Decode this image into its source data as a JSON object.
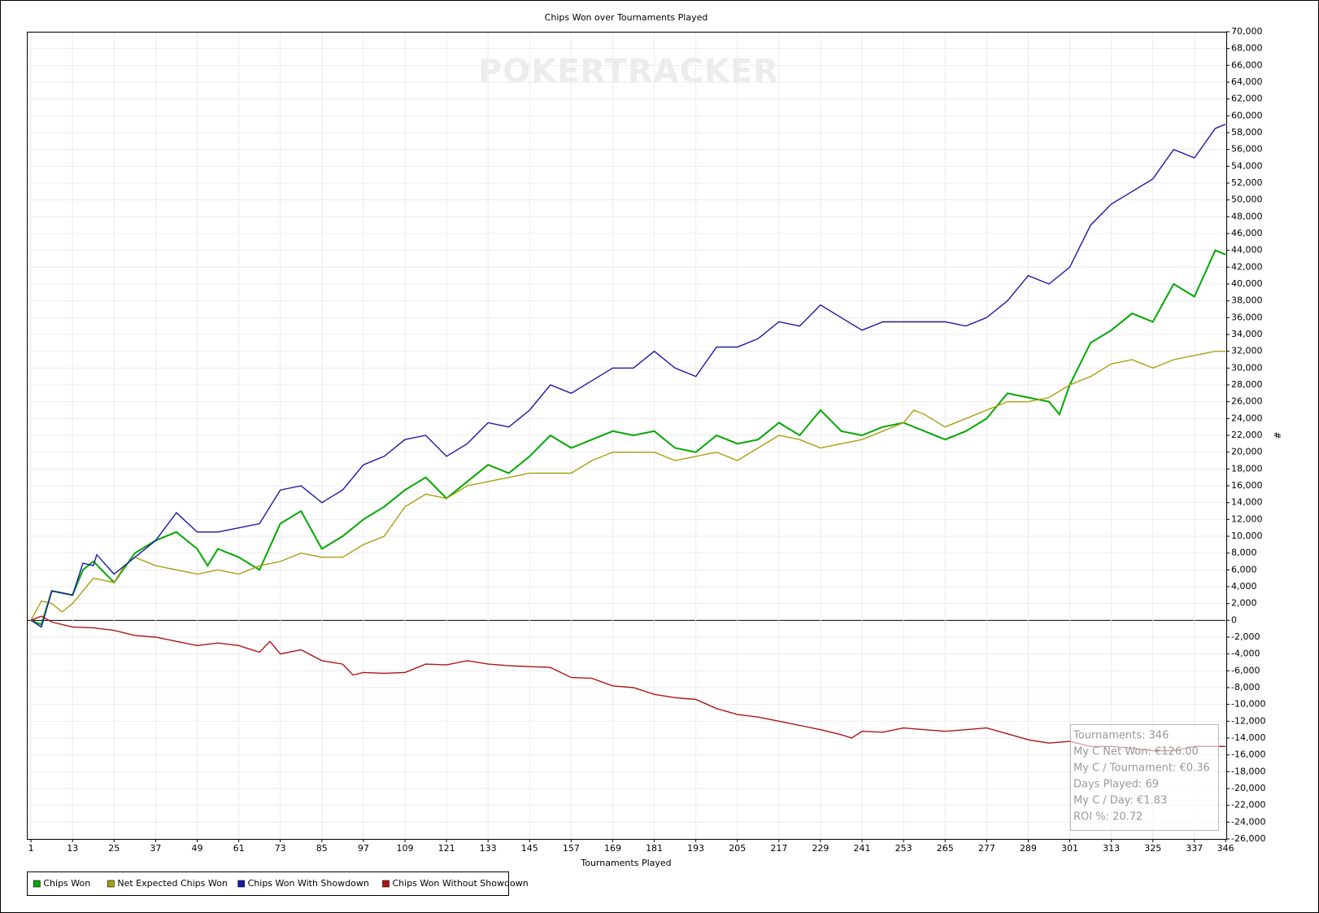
{
  "chart_data": {
    "type": "line",
    "title": "Chips Won over Tournaments Played",
    "watermark": "POKERTRACKER",
    "x_label": "Tournaments Played",
    "y_label": "#",
    "xlim": [
      -0.2,
      346.2
    ],
    "xticks": [
      1,
      13,
      25,
      37,
      49,
      61,
      73,
      85,
      97,
      109,
      121,
      133,
      145,
      157,
      169,
      181,
      193,
      205,
      217,
      229,
      241,
      253,
      265,
      277,
      289,
      301,
      313,
      325,
      337,
      346
    ],
    "ylim": [
      -26000,
      70000
    ],
    "yticks": [
      {
        "value": -26000,
        "label": "-26,000"
      },
      {
        "value": -24000,
        "label": "-24,000"
      },
      {
        "value": -22000,
        "label": "-22,000"
      },
      {
        "value": -20000,
        "label": "-20,000"
      },
      {
        "value": -18000,
        "label": "-18,000"
      },
      {
        "value": -16000,
        "label": "-16,000"
      },
      {
        "value": -14000,
        "label": "-14,000"
      },
      {
        "value": -12000,
        "label": "-12,000"
      },
      {
        "value": -10000,
        "label": "-10,000"
      },
      {
        "value": -8000,
        "label": "-8,000"
      },
      {
        "value": -6000,
        "label": "-6,000"
      },
      {
        "value": -4000,
        "label": "-4,000"
      },
      {
        "value": -2000,
        "label": "-2,000"
      },
      0,
      {
        "value": 2000,
        "label": "2,000"
      },
      {
        "value": 4000,
        "label": "4,000"
      },
      {
        "value": 6000,
        "label": "6,000"
      },
      {
        "value": 8000,
        "label": "8,000"
      },
      {
        "value": 10000,
        "label": "10,000"
      },
      {
        "value": 12000,
        "label": "12,000"
      },
      {
        "value": 14000,
        "label": "14,000"
      },
      {
        "value": 16000,
        "label": "16,000"
      },
      {
        "value": 18000,
        "label": "18,000"
      },
      {
        "value": 20000,
        "label": "20,000"
      },
      {
        "value": 22000,
        "label": "22,000"
      },
      {
        "value": 24000,
        "label": "24,000"
      },
      {
        "value": 26000,
        "label": "26,000"
      },
      {
        "value": 28000,
        "label": "28,000"
      },
      {
        "value": 30000,
        "label": "30,000"
      },
      {
        "value": 32000,
        "label": "32,000"
      },
      {
        "value": 34000,
        "label": "34,000"
      },
      {
        "value": 36000,
        "label": "36,000"
      },
      {
        "value": 38000,
        "label": "38,000"
      },
      {
        "value": 40000,
        "label": "40,000"
      },
      {
        "value": 42000,
        "label": "42,000"
      },
      {
        "value": 44000,
        "label": "44,000"
      },
      {
        "value": 46000,
        "label": "46,000"
      },
      {
        "value": 48000,
        "label": "48,000"
      },
      {
        "value": 50000,
        "label": "50,000"
      },
      {
        "value": 52000,
        "label": "52,000"
      },
      {
        "value": 54000,
        "label": "54,000"
      },
      {
        "value": 56000,
        "label": "56,000"
      },
      {
        "value": 58000,
        "label": "58,000"
      },
      {
        "value": 60000,
        "label": "60,000"
      },
      {
        "value": 62000,
        "label": "62,000"
      },
      {
        "value": 64000,
        "label": "64,000"
      },
      {
        "value": 66000,
        "label": "66,000"
      },
      {
        "value": 68000,
        "label": "68,000"
      },
      {
        "value": 70000,
        "label": "70,000"
      }
    ],
    "grid": true,
    "series": [
      {
        "name": "Chips Won",
        "color": "#00a800",
        "x": [
          1,
          4,
          7,
          13,
          16,
          19,
          25,
          31,
          37,
          43,
          49,
          52,
          55,
          61,
          67,
          73,
          79,
          85,
          91,
          97,
          103,
          109,
          115,
          121,
          127,
          133,
          139,
          145,
          151,
          157,
          163,
          169,
          175,
          181,
          187,
          193,
          199,
          205,
          211,
          217,
          223,
          229,
          235,
          241,
          247,
          253,
          259,
          265,
          271,
          277,
          283,
          289,
          295,
          298,
          301,
          307,
          313,
          319,
          325,
          331,
          337,
          343,
          346
        ],
        "values": [
          0,
          -500,
          3500,
          3000,
          6000,
          7000,
          4500,
          8000,
          9500,
          10500,
          8500,
          6500,
          8500,
          7500,
          6000,
          11500,
          13000,
          8500,
          10000,
          12000,
          13500,
          15500,
          17000,
          14500,
          16500,
          18500,
          17500,
          19500,
          22000,
          20500,
          21500,
          22500,
          22000,
          22500,
          20500,
          20000,
          22000,
          21000,
          21500,
          23500,
          22000,
          25000,
          22500,
          22000,
          23000,
          23500,
          22500,
          21500,
          22500,
          24000,
          27000,
          26500,
          26000,
          24500,
          28000,
          33000,
          34500,
          36500,
          35500,
          40000,
          38500,
          44000,
          43500
        ]
      },
      {
        "name": "Net Expected Chips Won",
        "color": "#a8a010",
        "x": [
          1,
          4,
          7,
          10,
          13,
          16,
          19,
          25,
          28,
          31,
          37,
          43,
          49,
          55,
          61,
          67,
          73,
          79,
          85,
          91,
          97,
          103,
          109,
          115,
          121,
          127,
          133,
          139,
          145,
          151,
          157,
          163,
          169,
          175,
          181,
          187,
          193,
          199,
          205,
          211,
          217,
          223,
          229,
          235,
          241,
          247,
          253,
          256,
          259,
          265,
          271,
          277,
          283,
          289,
          295,
          301,
          307,
          313,
          319,
          325,
          331,
          337,
          343,
          346
        ],
        "values": [
          0,
          2300,
          2000,
          1000,
          2000,
          3500,
          5000,
          4500,
          6500,
          7500,
          6500,
          6000,
          5500,
          6000,
          5500,
          6500,
          7000,
          8000,
          7500,
          7500,
          9000,
          10000,
          13500,
          15000,
          14500,
          16000,
          16500,
          17000,
          17500,
          17500,
          17500,
          19000,
          20000,
          20000,
          20000,
          19000,
          19500,
          20000,
          19000,
          20500,
          22000,
          21500,
          20500,
          21000,
          21500,
          22500,
          23500,
          25000,
          24500,
          23000,
          24000,
          25000,
          26000,
          26000,
          26500,
          28000,
          29000,
          30500,
          31000,
          30000,
          31000,
          31500,
          32000,
          32000
        ]
      },
      {
        "name": "Chips Won With Showdown",
        "color": "#1a1aa8",
        "x": [
          1,
          4,
          7,
          13,
          16,
          19,
          20,
          25,
          31,
          37,
          43,
          49,
          55,
          61,
          67,
          73,
          79,
          85,
          91,
          97,
          103,
          109,
          115,
          121,
          127,
          133,
          139,
          145,
          151,
          157,
          163,
          169,
          175,
          181,
          187,
          193,
          199,
          205,
          211,
          217,
          223,
          229,
          235,
          241,
          247,
          253,
          259,
          265,
          271,
          277,
          283,
          289,
          295,
          301,
          307,
          313,
          319,
          325,
          331,
          337,
          343,
          346
        ],
        "values": [
          0,
          -800,
          3500,
          3000,
          6800,
          6500,
          7800,
          5500,
          7500,
          9500,
          12800,
          10500,
          10500,
          11000,
          11500,
          15500,
          16000,
          14000,
          15500,
          18500,
          19500,
          21500,
          22000,
          19500,
          21000,
          23500,
          23000,
          25000,
          28000,
          27000,
          28500,
          30000,
          30000,
          32000,
          30000,
          29000,
          32500,
          32500,
          33500,
          35500,
          35000,
          37500,
          36000,
          34500,
          35500,
          35500,
          35500,
          35500,
          35000,
          36000,
          38000,
          41000,
          40000,
          42000,
          47000,
          49500,
          51000,
          52500,
          56000,
          55000,
          58500,
          59000
        ]
      },
      {
        "name": "Chips Won Without Showdown",
        "color": "#b01414",
        "x": [
          1,
          4,
          7,
          13,
          19,
          25,
          31,
          37,
          43,
          49,
          55,
          61,
          67,
          70,
          73,
          79,
          85,
          91,
          94,
          97,
          103,
          109,
          115,
          121,
          127,
          133,
          139,
          145,
          151,
          157,
          163,
          169,
          175,
          181,
          187,
          193,
          199,
          205,
          211,
          217,
          223,
          229,
          235,
          238,
          241,
          247,
          253,
          259,
          265,
          271,
          277,
          283,
          289,
          295,
          301,
          307,
          313,
          319,
          325,
          331,
          337,
          343,
          346
        ],
        "values": [
          0,
          500,
          -200,
          -800,
          -900,
          -1200,
          -1800,
          -2000,
          -2500,
          -3000,
          -2700,
          -3000,
          -3800,
          -2500,
          -4000,
          -3500,
          -4800,
          -5200,
          -6500,
          -6200,
          -6300,
          -6200,
          -5200,
          -5300,
          -4800,
          -5200,
          -5400,
          -5500,
          -5600,
          -6800,
          -6900,
          -7800,
          -8000,
          -8800,
          -9200,
          -9400,
          -10500,
          -11200,
          -11500,
          -12000,
          -12500,
          -13000,
          -13600,
          -14000,
          -13200,
          -13300,
          -12800,
          -13000,
          -13200,
          -13000,
          -12800,
          -13500,
          -14200,
          -14600,
          -14400,
          -15000,
          -15000,
          -15200,
          -15500,
          -15500,
          -15000,
          -15000,
          -15000
        ]
      }
    ],
    "info_box": [
      "Tournaments: 346",
      "My C Net Won: €126.00",
      "My C / Tournament: €0.36",
      "Days Played: 69",
      "My C / Day: €1.83",
      "ROI %: 20.72"
    ]
  }
}
